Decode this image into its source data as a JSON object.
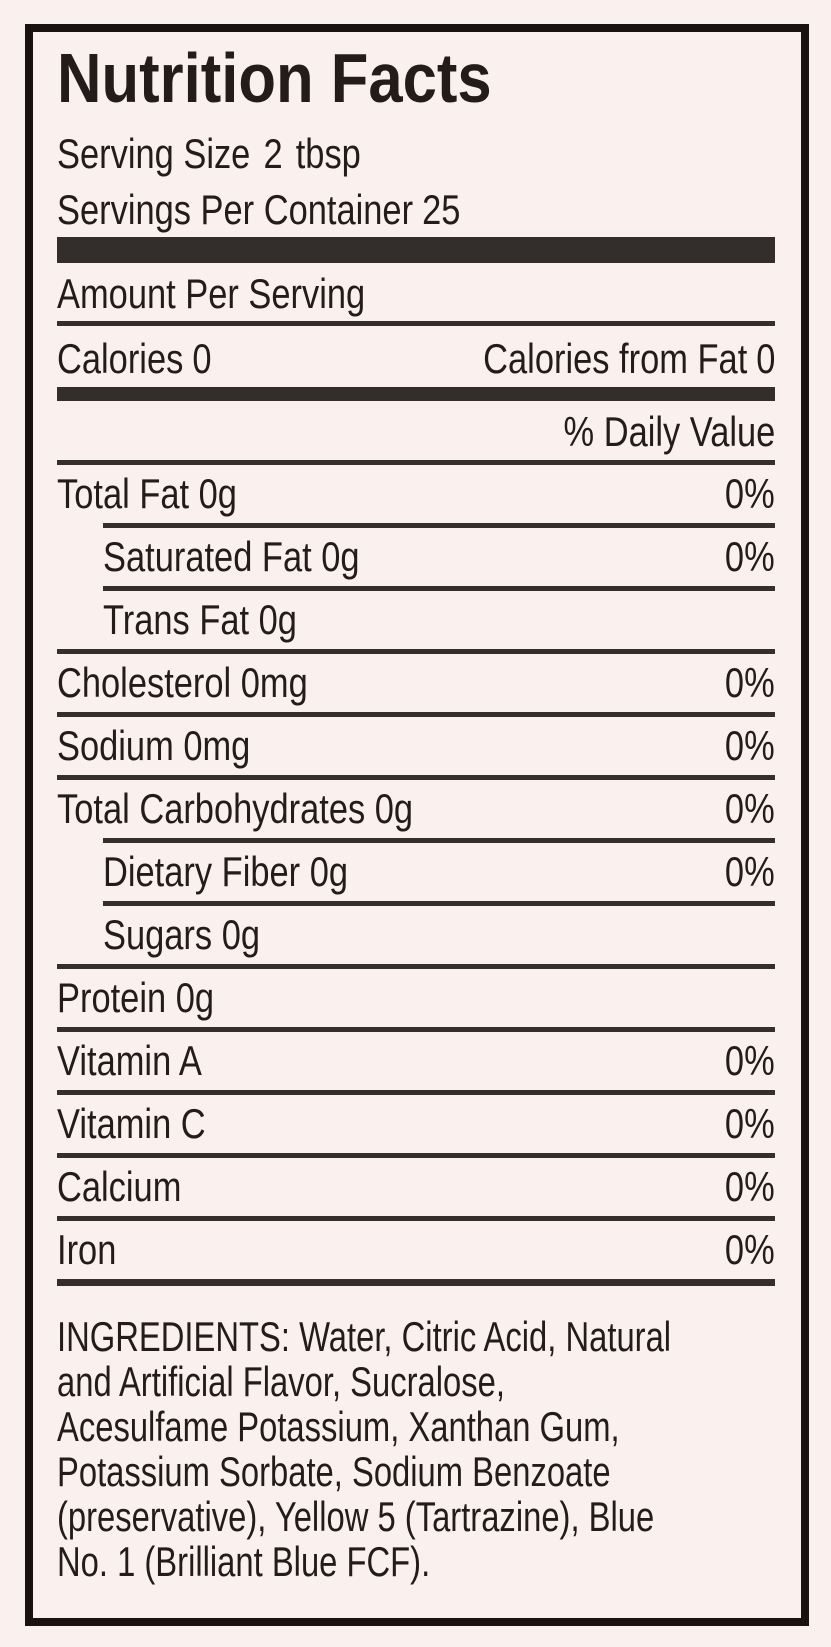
{
  "label": {
    "title": "Nutrition Facts",
    "serving_size_label": "Serving Size",
    "serving_size_value": "2",
    "serving_size_unit": "tbsp",
    "servings_per_container_label": "Servings Per Container",
    "servings_per_container_value": "25",
    "amount_per_serving": "Amount Per Serving",
    "calories_label": "Calories",
    "calories_value": "0",
    "calories_from_fat_label": "Calories from Fat",
    "calories_from_fat_value": "0",
    "daily_value_header": "% Daily Value",
    "rows": [
      {
        "name": "Total Fat 0g",
        "dv": "0%"
      },
      {
        "name": "Saturated Fat 0g",
        "dv": "0%"
      },
      {
        "name": "Trans Fat 0g",
        "dv": ""
      },
      {
        "name": "Cholesterol 0mg",
        "dv": "0%"
      },
      {
        "name": "Sodium 0mg",
        "dv": "0%"
      },
      {
        "name": "Total Carbohydrates 0g",
        "dv": "0%"
      },
      {
        "name": "Dietary Fiber 0g",
        "dv": "0%"
      },
      {
        "name": "Sugars 0g",
        "dv": ""
      },
      {
        "name": "Protein 0g",
        "dv": ""
      },
      {
        "name": "Vitamin A",
        "dv": "0%"
      },
      {
        "name": "Vitamin C",
        "dv": "0%"
      },
      {
        "name": "Calcium",
        "dv": "0%"
      },
      {
        "name": "Iron",
        "dv": "0%"
      }
    ],
    "ingredients": {
      "lines": [
        "INGREDIENTS: Water, Citric Acid, Natural",
        "and Artificial Flavor, Sucralose,",
        "Acesulfame Potassium, Xanthan Gum,",
        "Potassium Sorbate, Sodium Benzoate",
        "(preservative), Yellow 5 (Tartrazine), Blue",
        "No. 1 (Brilliant Blue FCF)."
      ]
    }
  },
  "colors": {
    "background": "#faf1ef",
    "ink": "#241c1b",
    "bar": "#332d2c",
    "border": "#1a1211"
  }
}
